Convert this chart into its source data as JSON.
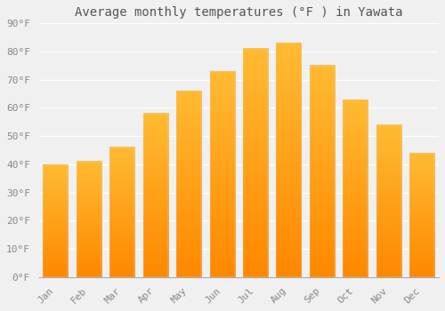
{
  "title": "Average monthly temperatures (°F ) in Yawata",
  "months": [
    "Jan",
    "Feb",
    "Mar",
    "Apr",
    "May",
    "Jun",
    "Jul",
    "Aug",
    "Sep",
    "Oct",
    "Nov",
    "Dec"
  ],
  "values": [
    40,
    41,
    46,
    58,
    66,
    73,
    81,
    83,
    75,
    63,
    54,
    44
  ],
  "bar_color_top": "#FFBB33",
  "bar_color_bottom": "#FF8800",
  "ylim": [
    0,
    90
  ],
  "yticks": [
    0,
    10,
    20,
    30,
    40,
    50,
    60,
    70,
    80,
    90
  ],
  "ytick_labels": [
    "0°F",
    "10°F",
    "20°F",
    "30°F",
    "40°F",
    "50°F",
    "60°F",
    "70°F",
    "80°F",
    "90°F"
  ],
  "background_color": "#f0f0f0",
  "grid_color": "#ffffff",
  "title_fontsize": 10,
  "tick_fontsize": 8,
  "bar_width": 0.75
}
